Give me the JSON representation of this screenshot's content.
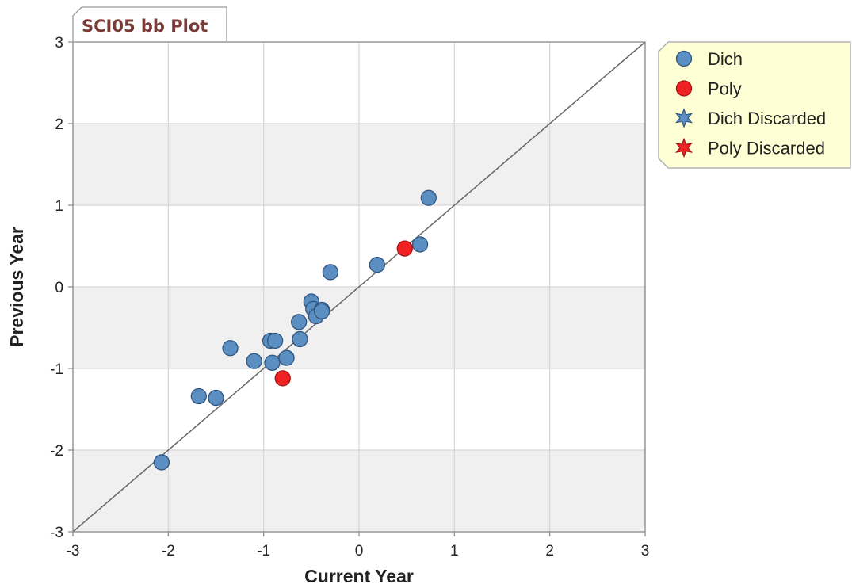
{
  "chart_data": {
    "type": "scatter",
    "title": "SCI05 bb Plot",
    "xlabel": "Current Year",
    "ylabel": "Previous Year",
    "xlim": [
      -3,
      3
    ],
    "ylim": [
      -3,
      3
    ],
    "xticks": [
      "-3",
      "-2",
      "-1",
      "0",
      "1",
      "2",
      "3"
    ],
    "yticks": [
      "-3",
      "-2",
      "-1",
      "0",
      "1",
      "2",
      "3"
    ],
    "grid": true,
    "alternating_bands": true,
    "reference_line": "y = x",
    "legend_position": "top-right outside",
    "series": [
      {
        "name": "Dich",
        "marker": "circle",
        "color": "#5b8fc2",
        "stroke": "#2f5580",
        "points": [
          {
            "x": -2.07,
            "y": -2.15
          },
          {
            "x": -1.68,
            "y": -1.34
          },
          {
            "x": -1.5,
            "y": -1.36
          },
          {
            "x": -1.35,
            "y": -0.75
          },
          {
            "x": -1.1,
            "y": -0.91
          },
          {
            "x": -0.93,
            "y": -0.66
          },
          {
            "x": -0.88,
            "y": -0.66
          },
          {
            "x": -0.91,
            "y": -0.93
          },
          {
            "x": -0.76,
            "y": -0.87
          },
          {
            "x": -0.62,
            "y": -0.64
          },
          {
            "x": -0.63,
            "y": -0.43
          },
          {
            "x": -0.5,
            "y": -0.18
          },
          {
            "x": -0.48,
            "y": -0.27
          },
          {
            "x": -0.45,
            "y": -0.36
          },
          {
            "x": -0.39,
            "y": -0.28
          },
          {
            "x": -0.39,
            "y": -0.3
          },
          {
            "x": -0.3,
            "y": 0.18
          },
          {
            "x": 0.19,
            "y": 0.27
          },
          {
            "x": 0.64,
            "y": 0.52
          },
          {
            "x": 0.73,
            "y": 1.09
          }
        ]
      },
      {
        "name": "Poly",
        "marker": "circle",
        "color": "#ee2222",
        "stroke": "#a31414",
        "points": [
          {
            "x": -0.8,
            "y": -1.12
          },
          {
            "x": 0.48,
            "y": 0.47
          }
        ]
      },
      {
        "name": "Dich Discarded",
        "marker": "star",
        "color": "#5b8fc2",
        "stroke": "#2f5580",
        "points": []
      },
      {
        "name": "Poly Discarded",
        "marker": "star",
        "color": "#ee2222",
        "stroke": "#a31414",
        "points": []
      }
    ]
  },
  "colors": {
    "title_text": "#7a3b36",
    "grid": "#d6d6d6",
    "band": "#f0f0f0",
    "legend_bg": "#ffffd6"
  }
}
